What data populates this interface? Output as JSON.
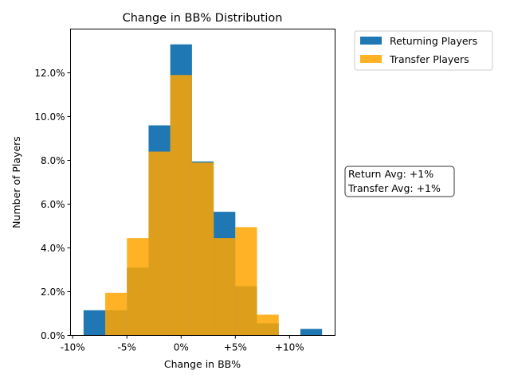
{
  "chart_data": {
    "type": "bar",
    "title": "Change in BB% Distribution",
    "xlabel": "Change in BB%",
    "ylabel": "Number of Players",
    "xlim": [
      -10.2,
      14.2
    ],
    "ylim": [
      0,
      14.0
    ],
    "bin_edges": [
      -9,
      -7,
      -5,
      -3,
      -1,
      1,
      3,
      5,
      7,
      9,
      11,
      13
    ],
    "x_ticks": [
      {
        "value": -10,
        "label": "-10%"
      },
      {
        "value": -5,
        "label": "-5%"
      },
      {
        "value": 0,
        "label": "0%"
      },
      {
        "value": 5,
        "label": "+5%"
      },
      {
        "value": 10,
        "label": "+10%"
      }
    ],
    "y_ticks": [
      {
        "value": 0,
        "label": "0.0%"
      },
      {
        "value": 2,
        "label": "2.0%"
      },
      {
        "value": 4,
        "label": "4.0%"
      },
      {
        "value": 6,
        "label": "6.0%"
      },
      {
        "value": 8,
        "label": "8.0%"
      },
      {
        "value": 10,
        "label": "10.0%"
      },
      {
        "value": 12,
        "label": "12.0%"
      }
    ],
    "series": [
      {
        "name": "Returning Players",
        "color": "#1f77b4",
        "values": [
          1.15,
          1.15,
          3.1,
          9.6,
          13.3,
          7.95,
          5.65,
          2.25,
          0.55,
          0.0,
          0.3
        ]
      },
      {
        "name": "Transfer Players",
        "color": "#ffa500",
        "alpha": 0.85,
        "values": [
          0.0,
          1.95,
          4.45,
          8.4,
          11.9,
          7.9,
          4.45,
          4.95,
          0.95,
          0.0,
          0.0
        ]
      }
    ],
    "annotation": {
      "lines": [
        "Return Avg: +1%",
        "Transfer Avg: +1%"
      ]
    },
    "legend_placement": "outside-top-right",
    "grid": false
  }
}
